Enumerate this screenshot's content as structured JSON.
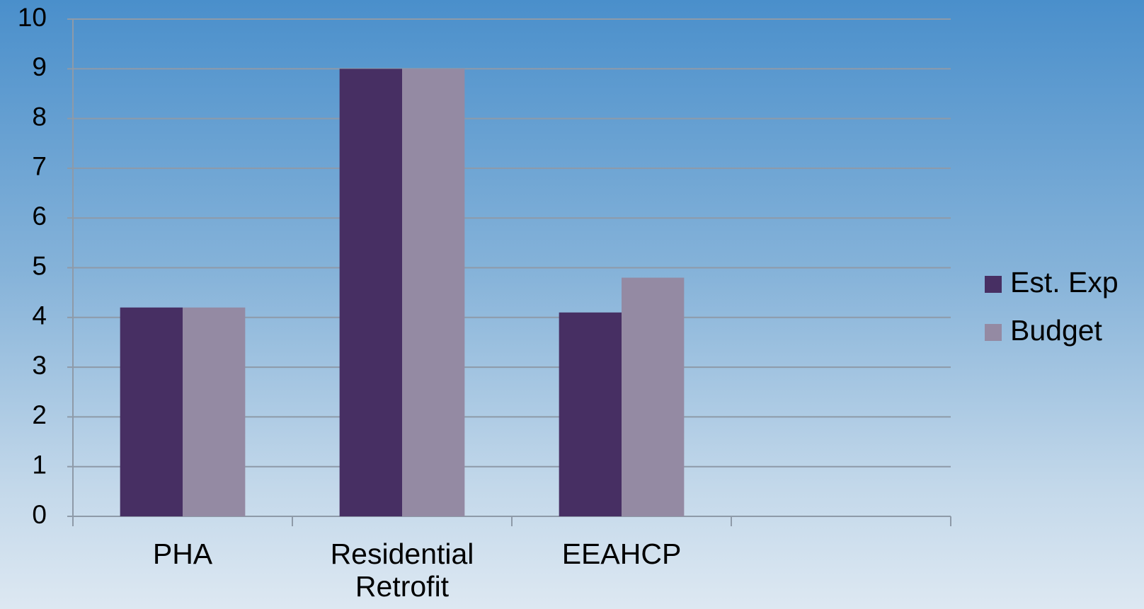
{
  "chart_data": {
    "type": "bar",
    "categories": [
      "PHA",
      "Residential Retrofit",
      "EEAHCP",
      null
    ],
    "series": [
      {
        "name": "Est. Exp",
        "color": "#472f63",
        "values": [
          4.2,
          9,
          4.1,
          null
        ]
      },
      {
        "name": "Budget",
        "color": "#948aa3",
        "values": [
          4.2,
          9,
          4.8,
          null
        ]
      }
    ],
    "ylim": [
      0,
      10
    ],
    "yticks": [
      0,
      1,
      2,
      3,
      4,
      5,
      6,
      7,
      8,
      9,
      10
    ],
    "grid": true,
    "legend": "right"
  }
}
